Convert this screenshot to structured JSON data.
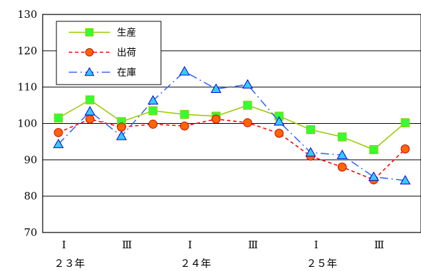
{
  "chart_data": {
    "type": "line",
    "categories": [
      "1",
      "2",
      "3",
      "4",
      "5",
      "6",
      "7",
      "8",
      "9",
      "10",
      "11",
      "12"
    ],
    "x_tick_labels": [
      {
        "index": 0,
        "roman": "Ⅰ",
        "year": "２３年"
      },
      {
        "index": 2,
        "roman": "Ⅲ",
        "year": ""
      },
      {
        "index": 4,
        "roman": "Ⅰ",
        "year": "２４年"
      },
      {
        "index": 6,
        "roman": "Ⅲ",
        "year": ""
      },
      {
        "index": 8,
        "roman": "Ⅰ",
        "year": "２５年"
      },
      {
        "index": 10,
        "roman": "Ⅲ",
        "year": ""
      }
    ],
    "series": [
      {
        "name": "生産",
        "values": [
          101.5,
          106.5,
          100.5,
          103.5,
          102.5,
          102.0,
          105.0,
          102.0,
          98.3,
          96.3,
          92.8,
          100.2
        ],
        "color": "#99cc00",
        "marker": "square",
        "marker_color": "#33ff33",
        "dash": "solid"
      },
      {
        "name": "出荷",
        "values": [
          97.5,
          101.2,
          99.0,
          99.8,
          99.3,
          101.2,
          100.2,
          97.3,
          91.0,
          88.0,
          84.5,
          93.0
        ],
        "color": "#ff0000",
        "marker": "circle",
        "marker_color": "#ff6600",
        "dash": "dashed"
      },
      {
        "name": "在庫",
        "values": [
          94.3,
          103.3,
          96.5,
          106.3,
          114.3,
          109.5,
          110.7,
          100.5,
          92.0,
          91.3,
          85.3,
          84.3
        ],
        "color": "#3366ff",
        "marker": "triangle",
        "marker_color": "#33ccff",
        "dash": "dashdot"
      }
    ],
    "yticks": [
      70,
      80,
      90,
      100,
      110,
      120,
      130
    ],
    "ylim": [
      70,
      130
    ],
    "grid": true,
    "legend_position": "top-left"
  }
}
